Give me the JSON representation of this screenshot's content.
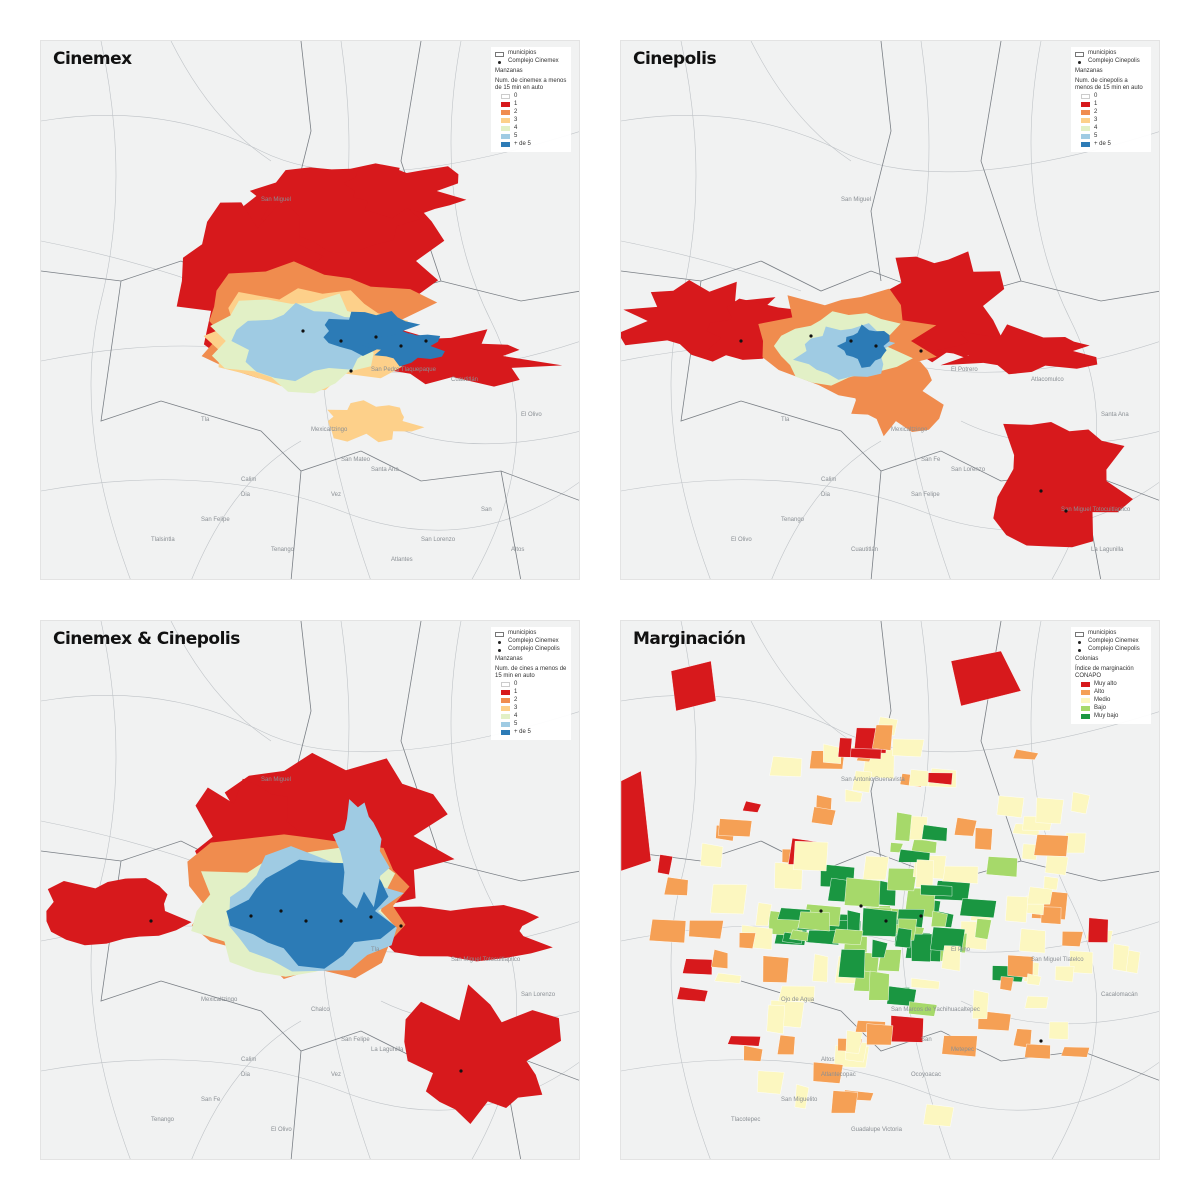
{
  "panels": [
    {
      "title": "Cinemex",
      "legend": {
        "boundary_label": "municipios",
        "points": [
          "Complejo Cinemex"
        ],
        "group_title": "Manzanas",
        "field_title": "Num. de cinemex a menos de 15 min en auto",
        "classes": [
          {
            "label": "0",
            "color": "#ffffff"
          },
          {
            "label": "1",
            "color": "#d7191c"
          },
          {
            "label": "2",
            "color": "#f08c4e"
          },
          {
            "label": "3",
            "color": "#fdd08a"
          },
          {
            "label": "4",
            "color": "#e2f0c6"
          },
          {
            "label": "5",
            "color": "#9fcbe3"
          },
          {
            "label": "+ de 5",
            "color": "#2c7bb6"
          }
        ]
      }
    },
    {
      "title": "Cinepolis",
      "legend": {
        "boundary_label": "municipios",
        "points": [
          "Complejo Cinepolis"
        ],
        "group_title": "Manzanas",
        "field_title": "Num. de cinepolis a menos de 15 min en auto",
        "classes": [
          {
            "label": "0",
            "color": "#ffffff"
          },
          {
            "label": "1",
            "color": "#d7191c"
          },
          {
            "label": "2",
            "color": "#f08c4e"
          },
          {
            "label": "3",
            "color": "#fdd08a"
          },
          {
            "label": "4",
            "color": "#e2f0c6"
          },
          {
            "label": "5",
            "color": "#9fcbe3"
          },
          {
            "label": "+ de 5",
            "color": "#2c7bb6"
          }
        ]
      }
    },
    {
      "title": "Cinemex & Cinepolis",
      "legend": {
        "boundary_label": "municipios",
        "points": [
          "Complejo Cinemex",
          "Complejo Cinepolis"
        ],
        "group_title": "Manzanas",
        "field_title": "Num. de cines a menos de 15 min en auto",
        "classes": [
          {
            "label": "0",
            "color": "#ffffff"
          },
          {
            "label": "1",
            "color": "#d7191c"
          },
          {
            "label": "2",
            "color": "#f08c4e"
          },
          {
            "label": "3",
            "color": "#fdd08a"
          },
          {
            "label": "4",
            "color": "#e2f0c6"
          },
          {
            "label": "5",
            "color": "#9fcbe3"
          },
          {
            "label": "+ de 5",
            "color": "#2c7bb6"
          }
        ]
      }
    },
    {
      "title": "Marginación",
      "legend": {
        "boundary_label": "municipios",
        "points": [
          "Complejo Cinemex",
          "Complejo Cinepolis"
        ],
        "group_title": "Colonias",
        "field_title": "Índice de marginación CONAPO",
        "classes": [
          {
            "label": "Muy alto",
            "color": "#d7191c"
          },
          {
            "label": "Alto",
            "color": "#f5a055"
          },
          {
            "label": "Medio",
            "color": "#fcf7c0"
          },
          {
            "label": "Bajo",
            "color": "#a6d96a"
          },
          {
            "label": "Muy bajo",
            "color": "#1a9641"
          }
        ]
      }
    }
  ],
  "place_labels": {
    "cinemex": [
      "San Miguel",
      "San Pedro Tlaquepaque",
      "Tla",
      "Mexicaltzingo",
      "San Mateo",
      "Calim",
      "Dia",
      "Vez",
      "San Felipe",
      "Tlalsintla",
      "Tenango",
      "El Olivo",
      "Cuautitlán",
      "Santa Ana",
      "San",
      "Altos",
      "Atlantes",
      "San Lorenzo"
    ],
    "cinepolis": [
      "San Miguel",
      "El Potrero",
      "Tla",
      "Mexicaltzingo",
      "San Fe",
      "Calim",
      "Dia",
      "San Felipe",
      "Tenango",
      "El Olivo",
      "Cuautitlán",
      "Santa Ana",
      "Atlacomulco",
      "San Lorenzo",
      "San Miguel Totocuitlapilco",
      "La Lagunilla"
    ],
    "combined": [
      "San Miguel",
      "Tla",
      "Mexicaltzingo",
      "Chalco",
      "San Felipe",
      "Calim",
      "Dia",
      "Vez",
      "San Fe",
      "Tenango",
      "El Olivo",
      "San Lorenzo",
      "San Miguel Totocuitlapilco",
      "La Lagunilla"
    ],
    "marginacion": [
      "San Antonio Buenavista",
      "El Pino",
      "Ojo de Agua",
      "San Marcos de Yachihuacaltepec",
      "San",
      "Altos",
      "Atlantecopac",
      "Ocoyoacac",
      "San Miguelito",
      "Tlacotepec",
      "Guadalupe Victoria",
      "Cacalomacán",
      "San Miguel Tlatelco",
      "Metepec"
    ]
  }
}
